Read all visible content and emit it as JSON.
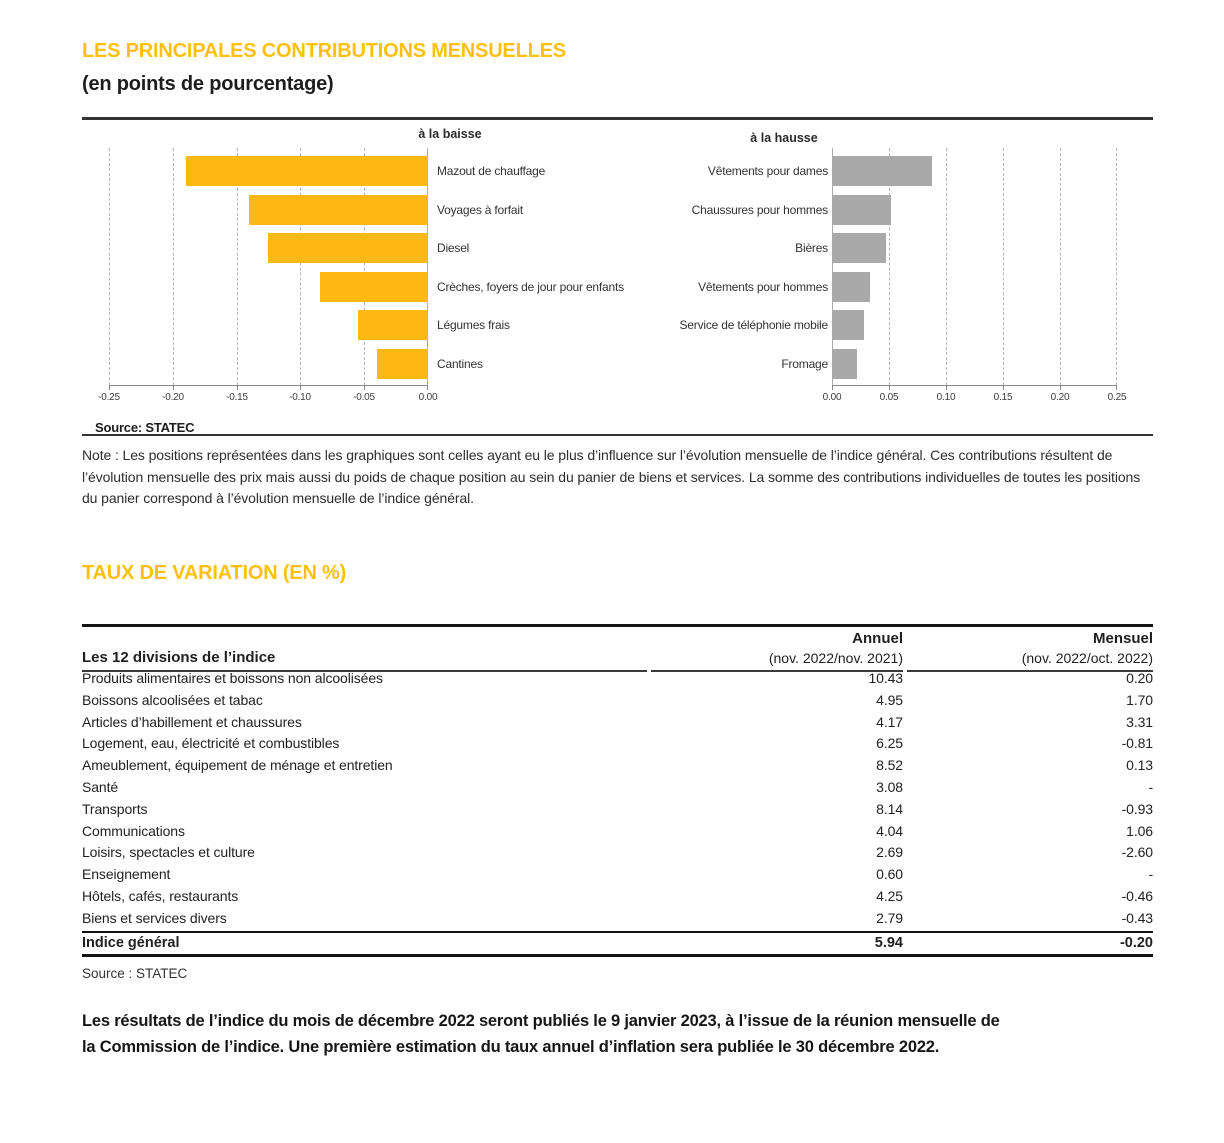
{
  "header": {
    "title": "LES PRINCIPALES CONTRIBUTIONS MENSUELLES",
    "subtitle": "(en points de pourcentage)"
  },
  "note": "Note : Les positions représentées dans les graphiques sont celles ayant eu le plus d’influence sur l’évolution mensuelle de l’indice général. Ces contributions résultent de l’évolution mensuelle des prix mais aussi du poids de chaque position au sein du panier de biens et services. La somme des contributions individuelles de toutes les positions du panier correspond à l’évolution mensuelle de l’indice général.",
  "chart_data": [
    {
      "type": "bar",
      "orientation": "horizontal",
      "title": "à la baisse",
      "categories": [
        "Mazout de chauffage",
        "Voyages à forfait",
        "Diesel",
        "Crèches, foyers de jour pour enfants",
        "Légumes frais",
        "Cantines"
      ],
      "values": [
        -0.19,
        -0.14,
        -0.125,
        -0.085,
        -0.055,
        -0.04
      ],
      "xlim": [
        -0.25,
        0
      ],
      "tick_labels": [
        "-0.25",
        "-0.20",
        "-0.15",
        "-0.10",
        "-0.05",
        "0.00"
      ],
      "bar_color": "#FDB813",
      "grid": "dashed-vertical",
      "source": "Source: STATEC"
    },
    {
      "type": "bar",
      "orientation": "horizontal",
      "title": "à la hausse",
      "categories": [
        "Vêtements pour dames",
        "Chaussures pour hommes",
        "Bières",
        "Vêtements pour hommes",
        "Service de téléphonie mobile",
        "Fromage"
      ],
      "values": [
        0.088,
        0.052,
        0.047,
        0.033,
        0.028,
        0.022
      ],
      "xlim": [
        0,
        0.25
      ],
      "tick_labels": [
        "0.00",
        "0.05",
        "0.10",
        "0.15",
        "0.20",
        "0.25"
      ],
      "bar_color": "#A9A9A9",
      "grid": "dashed-vertical"
    }
  ],
  "table": {
    "section_title": "TAUX DE VARIATION (EN %)",
    "col_divisions": "Les 12 divisions de l’indice",
    "col_annuel": "Annuel",
    "col_annuel_sub": "(nov. 2022/nov. 2021)",
    "col_mensuel": "Mensuel",
    "col_mensuel_sub": "(nov. 2022/oct. 2022)",
    "rows": [
      {
        "label": "Produits alimentaires et boissons non alcoolisées",
        "annuel": "10.43",
        "mensuel": "0.20"
      },
      {
        "label": "Boissons alcoolisées et tabac",
        "annuel": "4.95",
        "mensuel": "1.70"
      },
      {
        "label": "Articles d’habillement et chaussures",
        "annuel": "4.17",
        "mensuel": "3.31"
      },
      {
        "label": "Logement, eau, électricité et combustibles",
        "annuel": "6.25",
        "mensuel": "-0.81"
      },
      {
        "label": "Ameublement, équipement de ménage et entretien",
        "annuel": "8.52",
        "mensuel": "0.13"
      },
      {
        "label": "Santé",
        "annuel": "3.08",
        "mensuel": "-"
      },
      {
        "label": "Transports",
        "annuel": "8.14",
        "mensuel": "-0.93"
      },
      {
        "label": "Communications",
        "annuel": "4.04",
        "mensuel": "1.06"
      },
      {
        "label": "Loisirs, spectacles et culture",
        "annuel": "2.69",
        "mensuel": "-2.60"
      },
      {
        "label": "Enseignement",
        "annuel": "0.60",
        "mensuel": "-"
      },
      {
        "label": "Hôtels, cafés, restaurants",
        "annuel": "4.25",
        "mensuel": "-0.46"
      },
      {
        "label": "Biens et services divers",
        "annuel": "2.79",
        "mensuel": "-0.43"
      }
    ],
    "total": {
      "label": "Indice général",
      "annuel": "5.94",
      "mensuel": "-0.20"
    },
    "source": "Source : STATEC"
  },
  "footer": {
    "line1": "Les résultats de l’indice du mois de décembre 2022 seront publiés le 9 janvier 2023, à l’issue de la réunion mensuelle de",
    "line2": "la Commission de l’indice. Une première estimation du taux annuel d’inflation sera publiée le 30 décembre 2022."
  },
  "colors": {
    "accent_yellow": "#FDC00D",
    "bar_yellow": "#FDB813",
    "bar_gray": "#A9A9A9"
  }
}
